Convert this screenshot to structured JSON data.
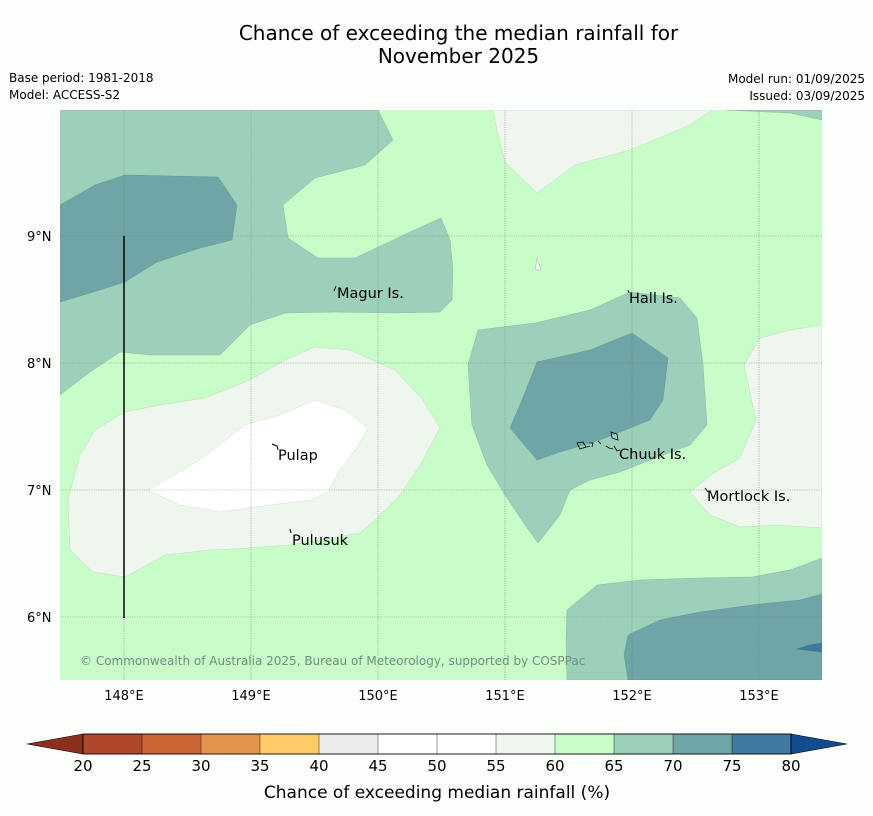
{
  "title_line1": "Chance of exceeding the median rainfall for",
  "title_line2": "November 2025",
  "meta": {
    "base_period": "Base period: 1981-2018",
    "model": "Model: ACCESS-S2",
    "model_run": "Model run: 01/09/2025",
    "issued": "Issued: 03/09/2025"
  },
  "map": {
    "lon_ticks": [
      "148°E",
      "149°E",
      "150°E",
      "151°E",
      "152°E",
      "153°E"
    ],
    "lat_ticks": [
      "9°N",
      "8°N",
      "7°N",
      "6°N"
    ],
    "places": [
      {
        "name": "Magur Is."
      },
      {
        "name": "Hall Is."
      },
      {
        "name": "Pulap"
      },
      {
        "name": "Chuuk Is."
      },
      {
        "name": "Mortlock Is."
      },
      {
        "name": "Pulusuk"
      }
    ],
    "copyright": "© Commonwealth of Australia 2025, Bureau of Meteorology, supported by COSPPac"
  },
  "colorbar": {
    "label": "Chance of exceeding median rainfall (%)",
    "ticks": [
      "20",
      "25",
      "30",
      "35",
      "40",
      "45",
      "50",
      "55",
      "60",
      "65",
      "70",
      "75",
      "80"
    ],
    "colors": [
      "#b1472a",
      "#cd6535",
      "#e2954a",
      "#fdcb67",
      "#ececec",
      "#ffffff",
      "#ffffff",
      "#eef6ee",
      "#c8fcc8",
      "#9dd0ba",
      "#6fa5a6",
      "#407aa1"
    ],
    "under_color": "#8c2f1e",
    "over_color": "#134b8f"
  }
}
